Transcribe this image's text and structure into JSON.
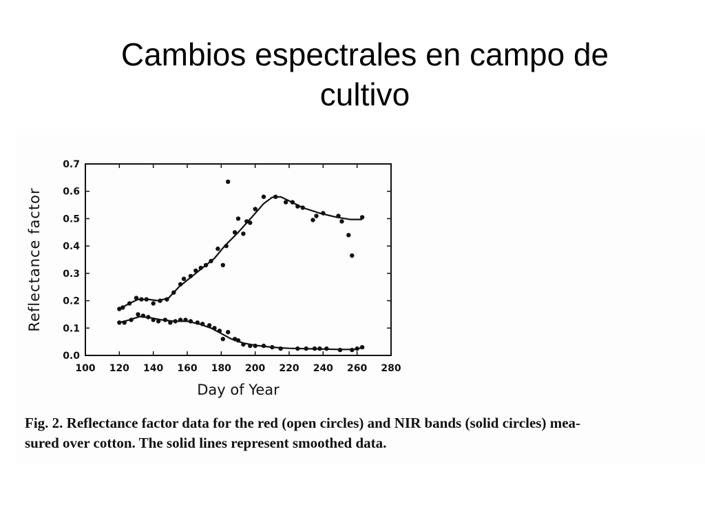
{
  "slide": {
    "title_line1": "Cambios espectrales en campo de",
    "title_line2": "cultivo"
  },
  "caption": {
    "line1": "Fig. 2. Reflectance factor data for the red (open circles) and NIR bands (solid circles) mea-",
    "line2": "sured over cotton. The solid lines represent smoothed data."
  },
  "chart_data": {
    "type": "scatter",
    "xlabel": "Day of Year",
    "ylabel": "Reflectance factor",
    "xlim": [
      100,
      280
    ],
    "ylim": [
      0.0,
      0.7
    ],
    "x_ticks": [
      100,
      120,
      140,
      160,
      180,
      200,
      220,
      240,
      260,
      280
    ],
    "y_ticks": [
      "0.0",
      "0.1",
      "0.2",
      "0.3",
      "0.4",
      "0.5",
      "0.6",
      "0.7"
    ],
    "grid": false,
    "series": [
      {
        "name": "NIR",
        "points": [
          [
            120,
            0.17
          ],
          [
            122,
            0.175
          ],
          [
            126,
            0.19
          ],
          [
            130,
            0.21
          ],
          [
            133,
            0.205
          ],
          [
            136,
            0.205
          ],
          [
            140,
            0.19
          ],
          [
            144,
            0.2
          ],
          [
            148,
            0.205
          ],
          [
            152,
            0.23
          ],
          [
            156,
            0.26
          ],
          [
            158,
            0.28
          ],
          [
            162,
            0.29
          ],
          [
            165,
            0.31
          ],
          [
            168,
            0.32
          ],
          [
            171,
            0.33
          ],
          [
            174,
            0.345
          ],
          [
            178,
            0.39
          ],
          [
            181,
            0.33
          ],
          [
            183,
            0.4
          ],
          [
            184,
            0.635
          ],
          [
            188,
            0.45
          ],
          [
            190,
            0.5
          ],
          [
            193,
            0.445
          ],
          [
            195,
            0.49
          ],
          [
            197,
            0.485
          ],
          [
            200,
            0.535
          ],
          [
            205,
            0.58
          ],
          [
            212,
            0.58
          ],
          [
            218,
            0.56
          ],
          [
            222,
            0.56
          ],
          [
            225,
            0.545
          ],
          [
            228,
            0.54
          ],
          [
            234,
            0.495
          ],
          [
            236,
            0.51
          ],
          [
            240,
            0.52
          ],
          [
            249,
            0.51
          ],
          [
            251,
            0.49
          ],
          [
            255,
            0.44
          ],
          [
            257,
            0.365
          ],
          [
            263,
            0.505
          ]
        ],
        "smoothed": [
          [
            120,
            0.17
          ],
          [
            126,
            0.19
          ],
          [
            131,
            0.205
          ],
          [
            137,
            0.205
          ],
          [
            143,
            0.2
          ],
          [
            149,
            0.21
          ],
          [
            155,
            0.25
          ],
          [
            162,
            0.285
          ],
          [
            170,
            0.325
          ],
          [
            176,
            0.355
          ],
          [
            182,
            0.4
          ],
          [
            190,
            0.45
          ],
          [
            198,
            0.505
          ],
          [
            205,
            0.555
          ],
          [
            210,
            0.578
          ],
          [
            215,
            0.58
          ],
          [
            220,
            0.565
          ],
          [
            228,
            0.54
          ],
          [
            238,
            0.52
          ],
          [
            248,
            0.505
          ],
          [
            256,
            0.497
          ],
          [
            263,
            0.497
          ]
        ]
      },
      {
        "name": "red",
        "points": [
          [
            120,
            0.12
          ],
          [
            123,
            0.12
          ],
          [
            127,
            0.13
          ],
          [
            131,
            0.15
          ],
          [
            134,
            0.145
          ],
          [
            137,
            0.14
          ],
          [
            140,
            0.13
          ],
          [
            143,
            0.125
          ],
          [
            147,
            0.13
          ],
          [
            150,
            0.12
          ],
          [
            153,
            0.125
          ],
          [
            156,
            0.13
          ],
          [
            159,
            0.13
          ],
          [
            162,
            0.125
          ],
          [
            166,
            0.12
          ],
          [
            169,
            0.115
          ],
          [
            173,
            0.11
          ],
          [
            176,
            0.1
          ],
          [
            179,
            0.09
          ],
          [
            181,
            0.06
          ],
          [
            184,
            0.085
          ],
          [
            188,
            0.06
          ],
          [
            190,
            0.055
          ],
          [
            193,
            0.04
          ],
          [
            197,
            0.035
          ],
          [
            200,
            0.035
          ],
          [
            205,
            0.035
          ],
          [
            210,
            0.03
          ],
          [
            215,
            0.025
          ],
          [
            225,
            0.025
          ],
          [
            230,
            0.025
          ],
          [
            235,
            0.025
          ],
          [
            238,
            0.025
          ],
          [
            242,
            0.025
          ],
          [
            250,
            0.02
          ],
          [
            257,
            0.02
          ],
          [
            260,
            0.025
          ],
          [
            263,
            0.03
          ]
        ],
        "smoothed": [
          [
            120,
            0.12
          ],
          [
            126,
            0.13
          ],
          [
            132,
            0.142
          ],
          [
            138,
            0.138
          ],
          [
            145,
            0.13
          ],
          [
            152,
            0.125
          ],
          [
            160,
            0.125
          ],
          [
            167,
            0.115
          ],
          [
            174,
            0.1
          ],
          [
            180,
            0.08
          ],
          [
            186,
            0.06
          ],
          [
            193,
            0.045
          ],
          [
            200,
            0.037
          ],
          [
            210,
            0.03
          ],
          [
            220,
            0.026
          ],
          [
            235,
            0.024
          ],
          [
            250,
            0.022
          ],
          [
            258,
            0.022
          ],
          [
            263,
            0.028
          ]
        ]
      }
    ]
  }
}
